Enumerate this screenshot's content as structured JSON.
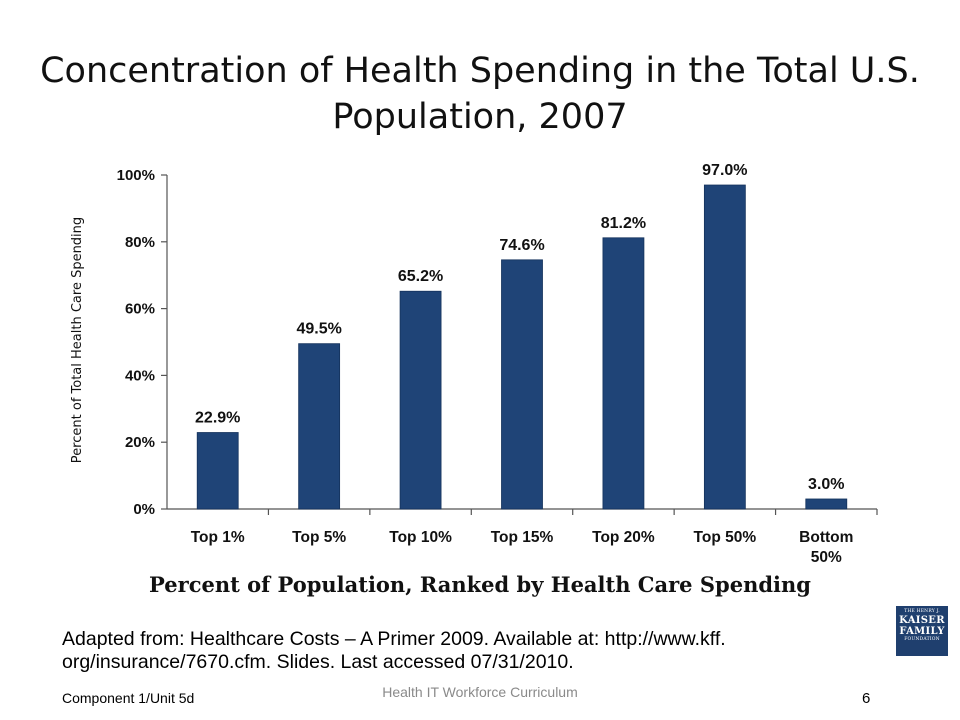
{
  "slide": {
    "title": "Concentration of Health Spending in the Total U.S. Population, 2007",
    "citation": "Adapted from: Healthcare Costs – A Primer 2009. Available at: http://www.kff. org/insurance/7670.cfm. Slides. Last accessed 07/31/2010.",
    "footer_left": "Component 1/Unit 5d",
    "footer_center": "Health IT Workforce Curriculum",
    "page_number": "6"
  },
  "logo": {
    "line1": "THE HENRY J.",
    "line2": "KAISER",
    "line3": "FAMILY",
    "line4": "FOUNDATION",
    "color": "#1f3f6e"
  },
  "chart_data": {
    "type": "bar",
    "categories": [
      "Top 1%",
      "Top 5%",
      "Top 10%",
      "Top 15%",
      "Top 20%",
      "Top 50%",
      "Bottom 50%"
    ],
    "values": [
      22.9,
      49.5,
      65.2,
      74.6,
      81.2,
      97.0,
      3.0
    ],
    "value_labels": [
      "22.9%",
      "49.5%",
      "65.2%",
      "74.6%",
      "81.2%",
      "97.0%",
      "3.0%"
    ],
    "ytick_values": [
      0,
      20,
      40,
      60,
      80,
      100
    ],
    "ytick_labels": [
      "0%",
      "20%",
      "40%",
      "60%",
      "80%",
      "100%"
    ],
    "ylim": [
      0,
      100
    ],
    "xlabel": "Percent of Population, Ranked by Health Care Spending",
    "ylabel": "Percent of Total Health Care Spending",
    "grid": false,
    "bar_color": "#1f4477"
  }
}
